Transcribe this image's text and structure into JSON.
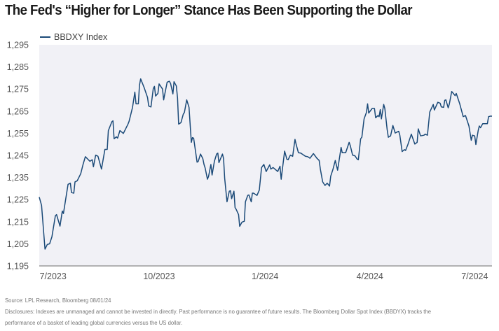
{
  "title": "The Fed's “Higher for Longer” Stance Has Been Supporting the Dollar",
  "footer": {
    "source": "Source: LPL Research, Bloomberg 08/01/24",
    "disclosure_line1": "Disclosures: Indexes are unmanaged and cannot be invested in directly. Past performance is no guarantee of future results. The Bloomberg Dollar Spot Index (BBDYX) tracks the",
    "disclosure_line2": "performance of a basket of leading global currencies versus the US dollar."
  },
  "colors": {
    "line": "#1b4a78",
    "plot_background": "#f1f1f6",
    "axis": "#888888"
  },
  "chart_data": {
    "type": "line",
    "title": "The Fed's “Higher for Longer” Stance Has Been Supporting the Dollar",
    "xlabel": "",
    "ylabel": "",
    "legend": "top-left",
    "grid": false,
    "ylim": [
      1195,
      1295
    ],
    "xlim": [
      "2023-06-19",
      "2024-07-16"
    ],
    "y_ticks": [
      "1,195",
      "1,205",
      "1,215",
      "1,225",
      "1,235",
      "1,245",
      "1,255",
      "1,265",
      "1,275",
      "1,285",
      "1,295"
    ],
    "y_tick_values": [
      1195,
      1205,
      1215,
      1225,
      1235,
      1245,
      1255,
      1265,
      1275,
      1285,
      1295
    ],
    "x_ticks": [
      "7/2023",
      "10/2023",
      "1/2024",
      "4/2024",
      "7/2024"
    ],
    "x_tick_values": [
      "2023-07-01",
      "2023-10-01",
      "2024-01-01",
      "2024-04-01",
      "2024-07-01"
    ],
    "series": [
      {
        "name": "BBDXY Index",
        "x": [
          "2023-06-19",
          "2023-06-21",
          "2023-06-24",
          "2023-06-26",
          "2023-06-28",
          "2023-06-30",
          "2023-07-03",
          "2023-07-04",
          "2023-07-07",
          "2023-07-09",
          "2023-07-10",
          "2023-07-14",
          "2023-07-16",
          "2023-07-17",
          "2023-07-19",
          "2023-07-20",
          "2023-07-22",
          "2023-07-25",
          "2023-07-27",
          "2023-07-29",
          "2023-08-02",
          "2023-08-04",
          "2023-08-05",
          "2023-08-07",
          "2023-08-09",
          "2023-08-12",
          "2023-08-15",
          "2023-08-17",
          "2023-08-18",
          "2023-08-21",
          "2023-08-22",
          "2023-08-23",
          "2023-08-25",
          "2023-08-26",
          "2023-08-28",
          "2023-08-31",
          "2023-09-04",
          "2023-09-05",
          "2023-09-08",
          "2023-09-10",
          "2023-09-11",
          "2023-09-13",
          "2023-09-14",
          "2023-09-15",
          "2023-09-18",
          "2023-09-21",
          "2023-09-22",
          "2023-09-24",
          "2023-09-26",
          "2023-09-27",
          "2023-09-28",
          "2023-09-30",
          "2023-10-01",
          "2023-10-04",
          "2023-10-05",
          "2023-10-08",
          "2023-10-10",
          "2023-10-11",
          "2023-10-13",
          "2023-10-14",
          "2023-10-16",
          "2023-10-17",
          "2023-10-18",
          "2023-10-20",
          "2023-10-22",
          "2023-10-23",
          "2023-10-25",
          "2023-10-27",
          "2023-10-29",
          "2023-10-30",
          "2023-10-31",
          "2023-11-03",
          "2023-11-04",
          "2023-11-06",
          "2023-11-08",
          "2023-11-09",
          "2023-11-10",
          "2023-11-12",
          "2023-11-13",
          "2023-11-15",
          "2023-11-16",
          "2023-11-18",
          "2023-11-20",
          "2023-11-21",
          "2023-11-22",
          "2023-11-25",
          "2023-11-26",
          "2023-11-27",
          "2023-11-29",
          "2023-12-01",
          "2023-12-02",
          "2023-12-03",
          "2023-12-05",
          "2023-12-06",
          "2023-12-07",
          "2023-12-09",
          "2023-12-10",
          "2023-12-12",
          "2023-12-14",
          "2023-12-15",
          "2023-12-17",
          "2023-12-18",
          "2023-12-20",
          "2023-12-21",
          "2023-12-22",
          "2023-12-25",
          "2023-12-27",
          "2023-12-29",
          "2023-12-31",
          "2024-01-02",
          "2024-01-05",
          "2024-01-06",
          "2024-01-08",
          "2024-01-12",
          "2024-01-14",
          "2024-01-15",
          "2024-01-18",
          "2024-01-20",
          "2024-01-21",
          "2024-01-23",
          "2024-01-25",
          "2024-01-27",
          "2024-01-28",
          "2024-01-30",
          "2024-02-01",
          "2024-02-05",
          "2024-02-07",
          "2024-02-09",
          "2024-02-12",
          "2024-02-15",
          "2024-02-17",
          "2024-02-18",
          "2024-02-20",
          "2024-02-22",
          "2024-02-24",
          "2024-02-26",
          "2024-02-27",
          "2024-02-29",
          "2024-03-02",
          "2024-03-04",
          "2024-03-07",
          "2024-03-08",
          "2024-03-11",
          "2024-03-14",
          "2024-03-15",
          "2024-03-17",
          "2024-03-19",
          "2024-03-21",
          "2024-03-22",
          "2024-03-24",
          "2024-03-25",
          "2024-03-27",
          "2024-03-29",
          "2024-03-30",
          "2024-03-31",
          "2024-04-03",
          "2024-04-05",
          "2024-04-06",
          "2024-04-08",
          "2024-04-09",
          "2024-04-10",
          "2024-04-11",
          "2024-04-13",
          "2024-04-14",
          "2024-04-16",
          "2024-04-17",
          "2024-04-19",
          "2024-04-21",
          "2024-04-23",
          "2024-04-26",
          "2024-04-27",
          "2024-04-29",
          "2024-05-01",
          "2024-05-02",
          "2024-05-04",
          "2024-05-07",
          "2024-05-10",
          "2024-05-12",
          "2024-05-13",
          "2024-05-15",
          "2024-05-18",
          "2024-05-19",
          "2024-05-21",
          "2024-05-23",
          "2024-05-26",
          "2024-05-27",
          "2024-05-30",
          "2024-06-01",
          "2024-06-02",
          "2024-06-04",
          "2024-06-05",
          "2024-06-06",
          "2024-06-08",
          "2024-06-09",
          "2024-06-11",
          "2024-06-12",
          "2024-06-14",
          "2024-06-15",
          "2024-06-18",
          "2024-06-21",
          "2024-06-23",
          "2024-06-26",
          "2024-06-28",
          "2024-06-29",
          "2024-07-01",
          "2024-07-02",
          "2024-07-04",
          "2024-07-05",
          "2024-07-06",
          "2024-07-08",
          "2024-07-10",
          "2024-07-12",
          "2024-07-13",
          "2024-07-15",
          "2024-07-16"
        ],
        "y": [
          1226.1,
          1222.4,
          1202.6,
          1204.7,
          1205.0,
          1208.2,
          1217.7,
          1218.2,
          1213.0,
          1219.8,
          1218.7,
          1231.9,
          1232.4,
          1228.2,
          1227.9,
          1233.0,
          1233.5,
          1236.7,
          1240.9,
          1244.4,
          1242.3,
          1243.0,
          1239.8,
          1245.1,
          1244.6,
          1238.8,
          1247.7,
          1247.7,
          1256.2,
          1260.2,
          1260.6,
          1252.5,
          1253.4,
          1252.8,
          1256.2,
          1254.9,
          1259.1,
          1260.4,
          1266.7,
          1273.6,
          1268.3,
          1268.3,
          1276.7,
          1279.6,
          1275.7,
          1271.2,
          1267.3,
          1266.9,
          1275.2,
          1276.2,
          1271.8,
          1273.0,
          1277.3,
          1275.0,
          1270.1,
          1278.1,
          1278.5,
          1277.5,
          1272.8,
          1278.3,
          1276.4,
          1271.0,
          1259.1,
          1259.8,
          1263.6,
          1264.4,
          1270.1,
          1266.7,
          1250.9,
          1253.0,
          1252.8,
          1241.9,
          1242.2,
          1245.6,
          1243.5,
          1240.9,
          1239.3,
          1234.2,
          1235.5,
          1240.9,
          1236.1,
          1242.3,
          1245.6,
          1246.0,
          1241.7,
          1245.6,
          1243.5,
          1234.6,
          1224.0,
          1228.8,
          1229.0,
          1225.4,
          1228.8,
          1221.4,
          1220.5,
          1218.2,
          1212.9,
          1214.8,
          1215.2,
          1224.0,
          1226.9,
          1227.1,
          1224.0,
          1227.9,
          1227.9,
          1226.9,
          1229.3,
          1239.5,
          1240.9,
          1237.7,
          1240.7,
          1238.8,
          1239.5,
          1237.7,
          1240.1,
          1234.2,
          1246.9,
          1243.2,
          1243.0,
          1245.1,
          1244.6,
          1252.2,
          1249.9,
          1246.2,
          1246.0,
          1244.6,
          1244.4,
          1243.7,
          1245.8,
          1243.7,
          1242.7,
          1238.8,
          1233.0,
          1231.4,
          1232.4,
          1231.1,
          1235.6,
          1238.8,
          1242.7,
          1238.3,
          1248.6,
          1246.2,
          1246.2,
          1250.9,
          1249.4,
          1245.1,
          1244.8,
          1243.3,
          1243.0,
          1252.5,
          1253.2,
          1261.5,
          1264.4,
          1268.3,
          1264.1,
          1266.2,
          1266.2,
          1262.0,
          1263.0,
          1262.5,
          1265.7,
          1261.5,
          1268.0,
          1266.2,
          1256.7,
          1253.2,
          1253.8,
          1258.5,
          1255.1,
          1255.9,
          1254.1,
          1246.7,
          1247.6,
          1247.2,
          1249.9,
          1254.6,
          1250.1,
          1250.9,
          1257.0,
          1253.8,
          1254.1,
          1254.6,
          1254.1,
          1264.6,
          1268.0,
          1265.5,
          1269.0,
          1268.6,
          1266.9,
          1266.7,
          1269.9,
          1270.1,
          1266.5,
          1268.3,
          1273.9,
          1273.3,
          1272.0,
          1273.0,
          1268.3,
          1262.5,
          1263.0,
          1258.3,
          1251.8,
          1254.1,
          1253.8,
          1249.9,
          1256.2,
          1258.3,
          1257.5,
          1259.3,
          1259.3,
          1259.3,
          1262.5,
          1262.8,
          1262.7
        ]
      }
    ]
  }
}
